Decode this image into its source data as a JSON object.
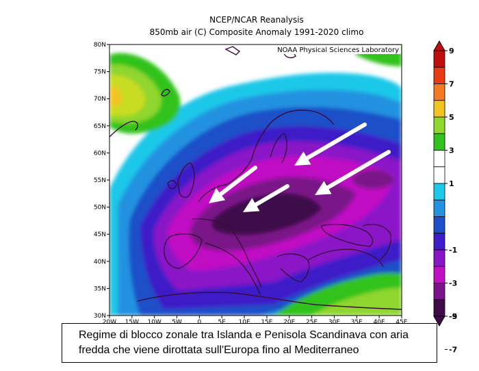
{
  "header": {
    "title": "NCEP/NCAR Reanalysis",
    "subtitle": "850mb air (C) Composite Anomaly 1991-2020 climo"
  },
  "map": {
    "credit": "NOAA Physical Sciences Laboratory",
    "lat_labels": [
      "80N",
      "75N",
      "70N",
      "65N",
      "60N",
      "55N",
      "50N",
      "45N",
      "40N",
      "35N",
      "30N"
    ],
    "lon_labels": [
      "20W",
      "15W",
      "10W",
      "5W",
      "0",
      "5E",
      "10E",
      "15E",
      "20E",
      "25E",
      "30E",
      "35E",
      "40E",
      "45E"
    ],
    "arrows": [
      {
        "from": [
          373,
          245
        ],
        "to": [
          305,
          297
        ]
      },
      {
        "from": [
          533,
          182
        ],
        "to": [
          430,
          242
        ]
      },
      {
        "from": [
          568,
          222
        ],
        "to": [
          460,
          285
        ]
      },
      {
        "from": [
          420,
          272
        ],
        "to": [
          355,
          310
        ]
      }
    ]
  },
  "colorbar": {
    "labels": [
      "9",
      "7",
      "5",
      "3",
      "1",
      "-1",
      "-3",
      "-5",
      "-7",
      "-9"
    ],
    "colors": [
      "#c00d0d",
      "#e83a14",
      "#f47b22",
      "#f2c420",
      "#8fd62e",
      "#32c21e",
      "#ffffff",
      "#ffffff",
      "#1ec8e8",
      "#2492e0",
      "#1d4fc8",
      "#3d1ec8",
      "#8a14c8",
      "#c010c4",
      "#7a1288",
      "#3e0a48"
    ]
  },
  "caption": {
    "line1": "Regime di blocco zonale tra Islanda e Penisola Scandinava con aria",
    "line2": "fredda che viene dirottata sull'Europa fino al Mediterraneo"
  }
}
